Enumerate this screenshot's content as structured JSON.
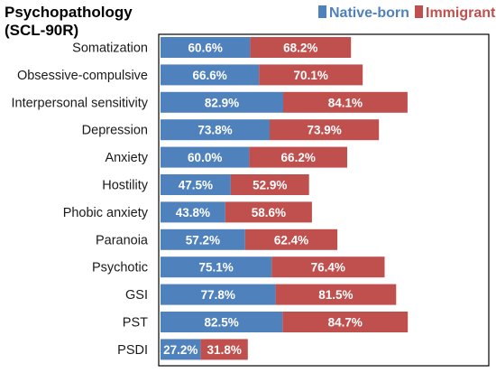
{
  "title_line1": "Psychopathology",
  "title_line2": "(SCL-90R)",
  "legend": [
    {
      "label": "Native-born",
      "color": "#4f81bd"
    },
    {
      "label": "Immigrant",
      "color": "#c0504d"
    }
  ],
  "chart_data": {
    "type": "bar",
    "orientation": "horizontal",
    "stacked": true,
    "categories": [
      "Somatization",
      "Obsessive-compulsive",
      "Interpersonal sensitivity",
      "Depression",
      "Anxiety",
      "Hostility",
      "Phobic anxiety",
      "Paranoia",
      "Psychotic",
      "GSI",
      "PST",
      "PSDI"
    ],
    "series": [
      {
        "name": "Native-born",
        "color": "#4f81bd",
        "values": [
          60.6,
          66.6,
          82.9,
          73.8,
          60.0,
          47.5,
          43.8,
          57.2,
          75.1,
          77.8,
          82.5,
          27.2
        ],
        "labels": [
          "60.6%",
          "66.6%",
          "82.9%",
          "73.8%",
          "60.0%",
          "47.5%",
          "43.8%",
          "57.2%",
          "75.1%",
          "77.8%",
          "82.5%",
          "27.2%"
        ]
      },
      {
        "name": "Immigrant",
        "color": "#c0504d",
        "values": [
          68.2,
          70.1,
          84.1,
          73.9,
          66.2,
          52.9,
          58.6,
          62.4,
          76.4,
          81.5,
          84.7,
          31.8
        ],
        "labels": [
          "68.2%",
          "70.1%",
          "84.1%",
          "73.9%",
          "66.2%",
          "52.9%",
          "58.6%",
          "62.4%",
          "76.4%",
          "81.5%",
          "84.7%",
          "31.8%"
        ]
      }
    ],
    "xlim": [
      0,
      200
    ],
    "grid": false,
    "legend_position": "top-right"
  }
}
